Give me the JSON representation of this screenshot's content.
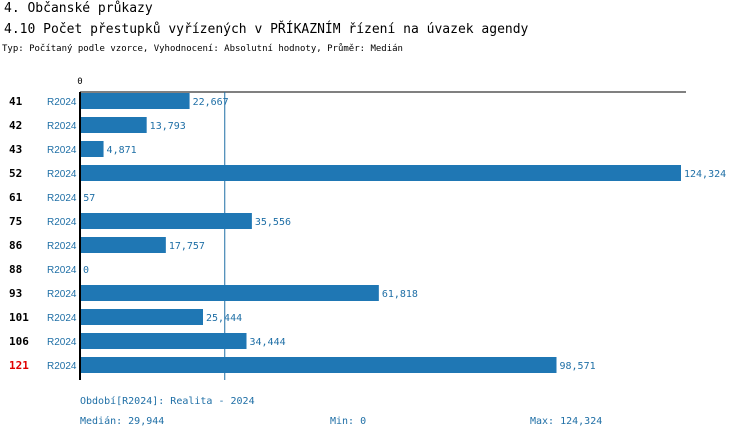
{
  "header": {
    "section": "4. Občanské průkazy",
    "title": "4.10 Počet přestupků vyřízených v PŘÍKAZNÍM řízení na úvazek agendy",
    "subtitle": "Typ: Počítaný podle vzorce, Vyhodnocení: Absolutní hodnoty, Průměr: Medián"
  },
  "colors": {
    "bar": "#1f77b4",
    "label": "#1f6fa6",
    "highlight": "#e00000"
  },
  "chart_data": {
    "type": "bar",
    "orientation": "horizontal",
    "axis_zero_label": "0",
    "xlim": [
      0,
      124324
    ],
    "median_line": 29944,
    "categories": [
      "41",
      "42",
      "43",
      "52",
      "61",
      "75",
      "86",
      "88",
      "93",
      "101",
      "106",
      "121"
    ],
    "period": "R2024",
    "values": [
      22667,
      13793,
      4871,
      124324,
      57,
      35556,
      17757,
      0,
      61818,
      25444,
      34444,
      98571
    ],
    "value_labels": [
      "22,667",
      "13,793",
      "4,871",
      "124,324",
      "57",
      "35,556",
      "17,757",
      "0",
      "61,818",
      "25,444",
      "34,444",
      "98,571"
    ],
    "highlighted_category": "121"
  },
  "footer": {
    "period_text": "Období[R2024]: Realita - 2024",
    "median_text": "Medián: 29,944",
    "min_text": "Min: 0",
    "max_text": "Max: 124,324"
  }
}
